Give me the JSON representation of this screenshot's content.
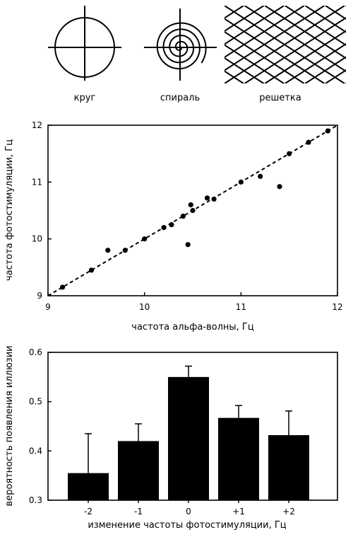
{
  "patterns": {
    "labels": [
      "круг",
      "спираль",
      "решетка"
    ],
    "icons": [
      "circle-crosshair",
      "spiral-crosshair",
      "diagonal-grid"
    ]
  },
  "chart_data": [
    {
      "type": "scatter",
      "title": "",
      "xlabel": "частота  альфа-волны, Гц",
      "ylabel": "частота  фотостимуляции, Гц",
      "xlim": [
        9,
        12
      ],
      "ylim": [
        9,
        12
      ],
      "xticks": [
        "9",
        "10",
        "11",
        "12"
      ],
      "yticks": [
        "9",
        "10",
        "11",
        "12"
      ],
      "points": [
        {
          "x": 9.15,
          "y": 9.15
        },
        {
          "x": 9.45,
          "y": 9.45
        },
        {
          "x": 9.62,
          "y": 9.8
        },
        {
          "x": 9.8,
          "y": 9.8
        },
        {
          "x": 10.0,
          "y": 10.0
        },
        {
          "x": 10.2,
          "y": 10.2
        },
        {
          "x": 10.28,
          "y": 10.25
        },
        {
          "x": 10.4,
          "y": 10.4
        },
        {
          "x": 10.45,
          "y": 9.9
        },
        {
          "x": 10.48,
          "y": 10.6
        },
        {
          "x": 10.5,
          "y": 10.5
        },
        {
          "x": 10.65,
          "y": 10.72
        },
        {
          "x": 10.72,
          "y": 10.7
        },
        {
          "x": 11.0,
          "y": 11.0
        },
        {
          "x": 11.2,
          "y": 11.1
        },
        {
          "x": 11.4,
          "y": 10.92
        },
        {
          "x": 11.5,
          "y": 11.5
        },
        {
          "x": 11.7,
          "y": 11.7
        },
        {
          "x": 11.9,
          "y": 11.9
        }
      ],
      "reference_line": {
        "from": [
          9,
          9
        ],
        "to": [
          12,
          12
        ],
        "style": "dashed"
      },
      "grid": false,
      "legend": "none"
    },
    {
      "type": "bar",
      "title": "",
      "xlabel": "изменение  частоты  фотостимуляции, Гц",
      "ylabel": "вероятность  появления  иллюзии",
      "categories": [
        "-2",
        "-1",
        "0",
        "+1",
        "+2"
      ],
      "values": [
        0.355,
        0.42,
        0.55,
        0.467,
        0.432
      ],
      "error_upper": [
        0.435,
        0.455,
        0.572,
        0.492,
        0.481
      ],
      "ylim": [
        0.3,
        0.6
      ],
      "yticks": [
        "0.3",
        "0.4",
        "0.5",
        "0.6"
      ],
      "bar_color": "#000000",
      "grid": false,
      "legend": "none"
    }
  ]
}
